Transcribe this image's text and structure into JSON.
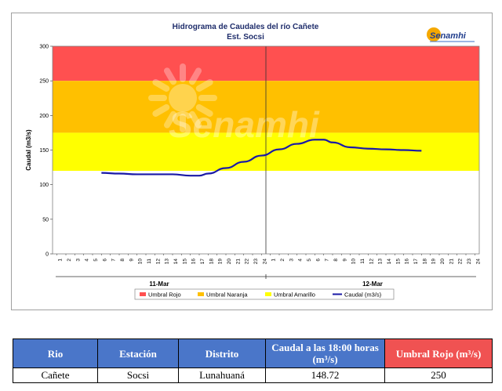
{
  "chart_data": {
    "type": "line",
    "title": "Hidrograma de Caudales  del río Cañete",
    "subtitle": "Est. Socsi",
    "ylabel": "Caudal  (m3/s)",
    "ylim": [
      0,
      300
    ],
    "yticks": [
      0,
      50,
      100,
      150,
      200,
      250,
      300
    ],
    "x_hour_ticks": [
      "1",
      "2",
      "3",
      "4",
      "5",
      "6",
      "7",
      "8",
      "9",
      "10",
      "11",
      "12",
      "13",
      "14",
      "15",
      "16",
      "17",
      "18",
      "19",
      "20",
      "21",
      "22",
      "23",
      "24"
    ],
    "days": [
      "11-Mar",
      "12-Mar"
    ],
    "bands": [
      {
        "name": "Umbral Rojo",
        "from": 250,
        "to": 300,
        "color": "#ff5050"
      },
      {
        "name": "Umbral Naranja",
        "from": 175,
        "to": 250,
        "color": "#ffc000"
      },
      {
        "name": "Umbral Amarillo",
        "from": 120,
        "to": 175,
        "color": "#ffff00"
      }
    ],
    "series": [
      {
        "name": "Caudal (m3/s)",
        "color": "#1a1aa6",
        "x": [
          6,
          8,
          10,
          12,
          14,
          16,
          17,
          18,
          20,
          22,
          24,
          26,
          28,
          30,
          31,
          32,
          34,
          36,
          38,
          40,
          42
        ],
        "y": [
          117,
          116,
          115,
          115,
          115,
          113,
          113,
          116,
          124,
          133,
          142,
          151,
          159,
          165,
          165,
          161,
          154,
          152,
          151,
          150,
          149
        ]
      }
    ],
    "grid": false,
    "legend_position": "bottom"
  },
  "logo": {
    "text": "Senamhi",
    "sun_color": "#f5a800"
  },
  "watermark": {
    "text": "Senamhi"
  },
  "table": {
    "headers": [
      "Rio",
      "Estación",
      "Distrito",
      "Caudal a las 18:00 horas (m³/s)",
      "Umbral Rojo (m³/s)"
    ],
    "rows": [
      [
        "Cañete",
        "Socsi",
        "Lunahuaná",
        "148.72",
        "250"
      ]
    ]
  }
}
